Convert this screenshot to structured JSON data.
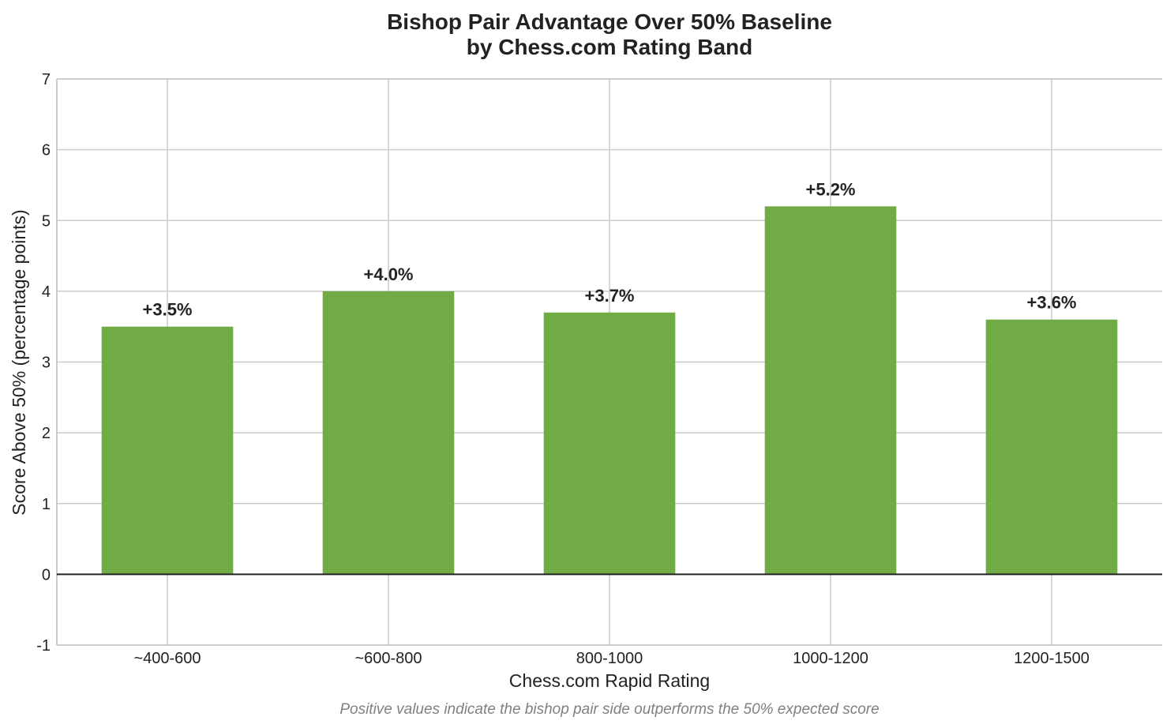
{
  "chart_data": {
    "type": "bar",
    "title_lines": [
      "Bishop Pair Advantage Over 50% Baseline",
      "by Chess.com Rating Band"
    ],
    "xlabel": "Chess.com Rapid Rating",
    "ylabel": "Score Above 50% (percentage points)",
    "categories": [
      "~400-600",
      "~600-800",
      "800-1000",
      "1000-1200",
      "1200-1500"
    ],
    "values": [
      3.5,
      4.0,
      3.7,
      5.2,
      3.6
    ],
    "data_labels": [
      "+3.5%",
      "+4.0%",
      "+3.7%",
      "+5.2%",
      "+3.6%"
    ],
    "ylim": [
      -1,
      7
    ],
    "yticks": [
      "-1",
      "0",
      "1",
      "2",
      "3",
      "4",
      "5",
      "6",
      "7"
    ],
    "grid": true,
    "bar_color": "#70ab46",
    "zero_line_color": "#222222",
    "footnote": "Positive values indicate the bishop pair side outperforms the 50% expected score"
  }
}
